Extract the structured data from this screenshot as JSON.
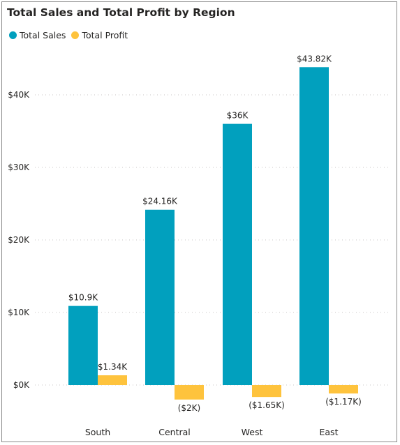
{
  "chart_data": {
    "type": "bar",
    "title": "Total Sales and Total Profit by Region",
    "xlabel": "",
    "ylabel": "",
    "categories": [
      "South",
      "Central",
      "West",
      "East"
    ],
    "series": [
      {
        "name": "Total Sales",
        "color": "#01A0BE",
        "values": [
          10900,
          24160,
          36000,
          43820
        ],
        "labels": [
          "$10.9K",
          "$24.16K",
          "$36K",
          "$43.82K"
        ]
      },
      {
        "name": "Total Profit",
        "color": "#FEC33D",
        "values": [
          1340,
          -2000,
          -1650,
          -1170
        ],
        "labels": [
          "$1.34K",
          "($2K)",
          "($1.65K)",
          "($1.17K)"
        ]
      }
    ],
    "ylim": [
      -2500,
      45000
    ],
    "yticks": [
      0,
      10000,
      20000,
      30000,
      40000
    ],
    "ytick_labels": [
      "$0K",
      "$10K",
      "$20K",
      "$30K",
      "$40K"
    ],
    "grid": true,
    "legend_position": "top-left"
  }
}
